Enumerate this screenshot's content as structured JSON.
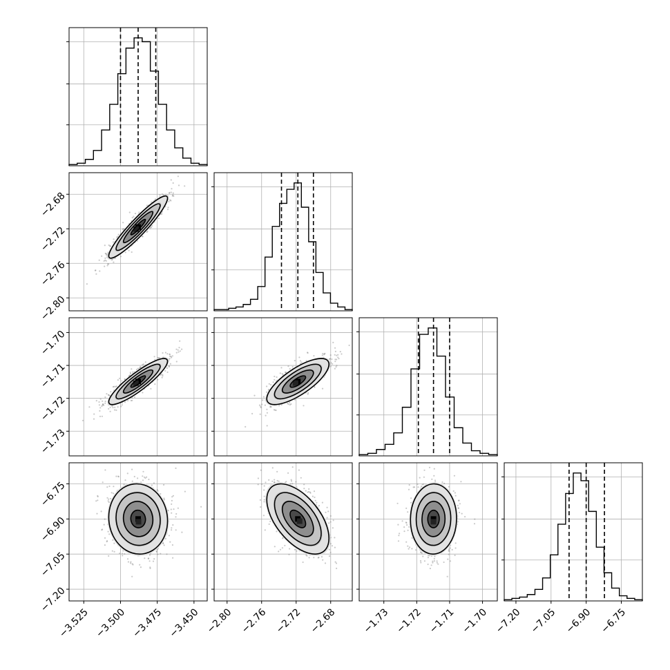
{
  "chart_data": {
    "type": "corner",
    "parameters": [
      {
        "axis_ticks": [
          "−3.525",
          "−3.500",
          "−3.475",
          "−3.450"
        ],
        "tick_values": [
          -3.525,
          -3.5,
          -3.475,
          -3.45
        ],
        "range": [
          -3.535,
          -3.441
        ],
        "quantiles": [
          -3.5,
          -3.488,
          -3.476
        ],
        "hist_counts": [
          1,
          2,
          5,
          12,
          28,
          48,
          72,
          92,
          100,
          97,
          74,
          48,
          28,
          14,
          6,
          2,
          1
        ]
      },
      {
        "axis_ticks": [
          "−2.80",
          "−2.76",
          "−2.72",
          "−2.68"
        ],
        "tick_values": [
          -2.8,
          -2.76,
          -2.72,
          -2.68
        ],
        "range": [
          -2.815,
          -2.655
        ],
        "quantiles": [
          -2.737,
          -2.718,
          -2.7
        ],
        "hist_counts": [
          1,
          1,
          2,
          3,
          5,
          9,
          19,
          42,
          66,
          84,
          95,
          100,
          81,
          54,
          30,
          14,
          6,
          3,
          1
        ]
      },
      {
        "axis_ticks": [
          "−1.73",
          "−1.72",
          "−1.71",
          "−1.70"
        ],
        "tick_values": [
          -1.73,
          -1.72,
          -1.71,
          -1.7
        ],
        "range": [
          -1.7375,
          -1.6955
        ],
        "quantiles": [
          -1.7195,
          -1.7149,
          -1.71
        ],
        "hist_counts": [
          1,
          2,
          5,
          9,
          18,
          38,
          68,
          95,
          100,
          78,
          46,
          22,
          10,
          4,
          2,
          1
        ]
      },
      {
        "axis_ticks": [
          "−7.20",
          "−7.05",
          "−6.90",
          "−6.75"
        ],
        "tick_values": [
          -7.2,
          -7.05,
          -6.9,
          -6.75
        ],
        "range": [
          -7.25,
          -6.66
        ],
        "quantiles": [
          -6.973,
          -6.9,
          -6.822
        ],
        "hist_counts": [
          1,
          2,
          3,
          5,
          9,
          18,
          36,
          60,
          84,
          100,
          94,
          70,
          42,
          22,
          10,
          4,
          2,
          1
        ]
      }
    ],
    "pairs": [
      {
        "row": 1,
        "col": 0,
        "center": [
          -3.488,
          -2.718
        ],
        "sigma": [
          0.01,
          0.018
        ],
        "rho": 0.93
      },
      {
        "row": 2,
        "col": 0,
        "center": [
          -3.488,
          -1.7149
        ],
        "sigma": [
          0.01,
          0.0035
        ],
        "rho": 0.88
      },
      {
        "row": 2,
        "col": 1,
        "center": [
          -2.718,
          -1.7149
        ],
        "sigma": [
          0.018,
          0.0035
        ],
        "rho": 0.75
      },
      {
        "row": 3,
        "col": 0,
        "center": [
          -3.488,
          -6.9
        ],
        "sigma": [
          0.01,
          0.075
        ],
        "rho": -0.05
      },
      {
        "row": 3,
        "col": 1,
        "center": [
          -2.718,
          -6.9
        ],
        "sigma": [
          0.018,
          0.075
        ],
        "rho": -0.55
      },
      {
        "row": 3,
        "col": 2,
        "center": [
          -1.7149,
          -6.9
        ],
        "sigma": [
          0.0035,
          0.075
        ],
        "rho": 0.02
      }
    ],
    "contour_levels": [
      0.5,
      1.0,
      1.5,
      2.0
    ],
    "grid": true,
    "colors": {
      "hist_line": "#000000",
      "grid": "#b0b0b0",
      "density_dark": "#000000",
      "points": "#888888"
    }
  }
}
